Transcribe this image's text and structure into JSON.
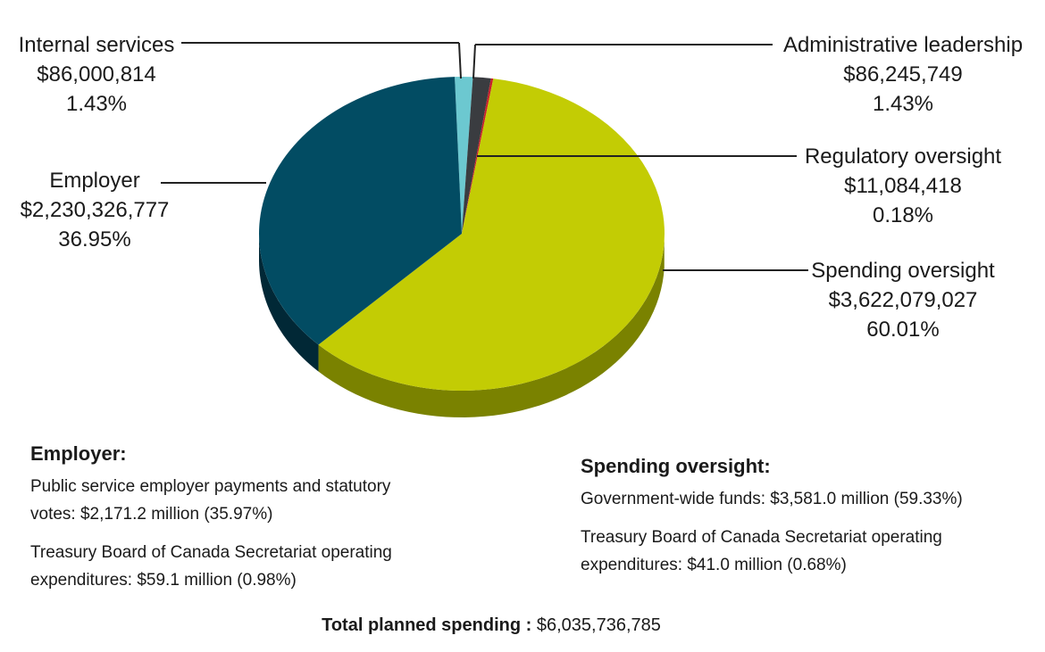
{
  "chart_data": {
    "type": "pie",
    "title": "",
    "total_label": "Total planned spending :",
    "total_value": "$6,035,736,785",
    "slices": [
      {
        "name": "Internal services",
        "amount": "$86,000,814",
        "percent_label": "1.43%",
        "percent": 1.43,
        "color": "#6cc8d0",
        "side_color": "#3e8d93"
      },
      {
        "name": "Administrative leadership",
        "amount": "$86,245,749",
        "percent_label": "1.43%",
        "percent": 1.43,
        "color": "#3a3c40",
        "side_color": "#1f2023"
      },
      {
        "name": "Regulatory oversight",
        "amount": "$11,084,418",
        "percent_label": "0.18%",
        "percent": 0.18,
        "color": "#c8202a",
        "side_color": "#7e1217"
      },
      {
        "name": "Spending oversight",
        "amount": "$3,622,079,027",
        "percent_label": "60.01%",
        "percent": 60.01,
        "color": "#c3cc04",
        "side_color": "#7a8200"
      },
      {
        "name": "Employer",
        "amount": "$2,230,326,777",
        "percent_label": "36.95%",
        "percent": 36.95,
        "color": "#024c63",
        "side_color": "#012836"
      }
    ]
  },
  "notes": {
    "employer": {
      "heading": "Employer:",
      "line1": "Public service employer payments and statutory votes: $2,171.2 million (35.97%)",
      "line2": "Treasury Board of Canada Secretariat operating expenditures: $59.1 million (0.98%)"
    },
    "spending": {
      "heading": "Spending oversight:",
      "line1": "Government-wide funds: $3,581.0 million (59.33%)",
      "line2": "Treasury Board of Canada Secretariat operating expenditures: $41.0 million (0.68%)"
    }
  }
}
